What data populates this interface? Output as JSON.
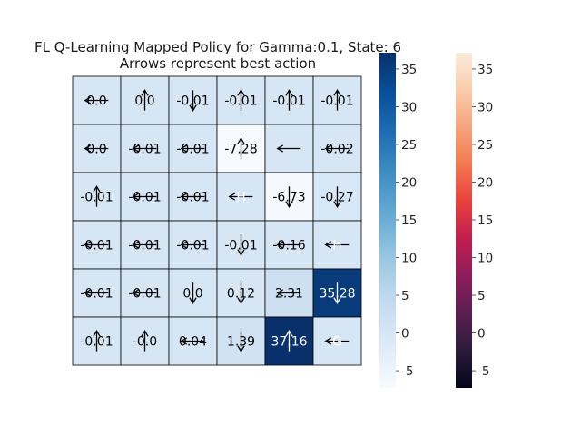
{
  "chart_data": {
    "type": "heatmap",
    "title": "FL Q-Learning Mapped Policy for Gamma:0.1, State: 6",
    "subtitle": "Arrows represent best action",
    "grid": {
      "rows": 6,
      "cols": 6,
      "values": [
        [
          0.0,
          0.0,
          -0.01,
          -0.01,
          -0.01,
          -0.01
        ],
        [
          0.0,
          -0.01,
          -0.01,
          -7.28,
          0.0,
          -0.02
        ],
        [
          -0.01,
          -0.01,
          -0.01,
          0.0,
          -6.73,
          -0.27
        ],
        [
          -0.01,
          -0.01,
          -0.01,
          -0.01,
          -0.16,
          0.0
        ],
        [
          -0.01,
          -0.01,
          0.0,
          0.12,
          2.31,
          35.28
        ],
        [
          -0.01,
          0.0,
          0.04,
          1.39,
          37.16,
          0.0
        ]
      ],
      "labels": [
        [
          "0.0",
          "0.0",
          "-0.01",
          "-0.01",
          "-0.01",
          "-0.01"
        ],
        [
          "0.0",
          "-0.01",
          "-0.01",
          "-7.28",
          "",
          "-0.02"
        ],
        [
          "-0.01",
          "-0.01",
          "-0.01",
          "H",
          "-6.73",
          "-0.27"
        ],
        [
          "-0.01",
          "-0.01",
          "-0.01",
          "-0.01",
          "-0.16",
          "H"
        ],
        [
          "-0.01",
          "-0.01",
          "0.0",
          "0.12",
          "2.31",
          "35.28"
        ],
        [
          "-0.01",
          "-0.0",
          "0.04",
          "1.39",
          "37.16",
          "G"
        ]
      ],
      "arrows": [
        [
          "left",
          "up",
          "down",
          "up",
          "up",
          "up"
        ],
        [
          "left",
          "left",
          "left",
          "up",
          "left",
          "left"
        ],
        [
          "up",
          "left",
          "left",
          "left",
          "down",
          "down"
        ],
        [
          "left",
          "left",
          "left",
          "down",
          "left",
          "left"
        ],
        [
          "left",
          "left",
          "down",
          "down",
          "left",
          "down"
        ],
        [
          "up",
          "up",
          "left",
          "down",
          "up",
          "left"
        ]
      ]
    },
    "colorbars": [
      {
        "colormap": "Blues",
        "range": [
          -7.28,
          37.16
        ],
        "ticks": [
          -5,
          0,
          5,
          10,
          15,
          20,
          25,
          30,
          35
        ]
      },
      {
        "colormap": "rocket",
        "range": [
          -7.28,
          37.16
        ],
        "ticks": [
          -5,
          0,
          5,
          10,
          15,
          20,
          25,
          30,
          35
        ]
      }
    ],
    "colors": {
      "blues_stops": [
        "#f7fbff",
        "#deebf7",
        "#c6dbef",
        "#9ecae1",
        "#6baed6",
        "#4292c6",
        "#2171b5",
        "#08519c",
        "#08306b"
      ],
      "rocket_stops": [
        "#03051a",
        "#2b1b3c",
        "#5b1e51",
        "#8e1d5b",
        "#c01e4f",
        "#e7413e",
        "#f3784f",
        "#f6a47c",
        "#f9cdac",
        "#faebdd"
      ],
      "text_dark": "#000000",
      "text_light": "#ffffff"
    }
  }
}
